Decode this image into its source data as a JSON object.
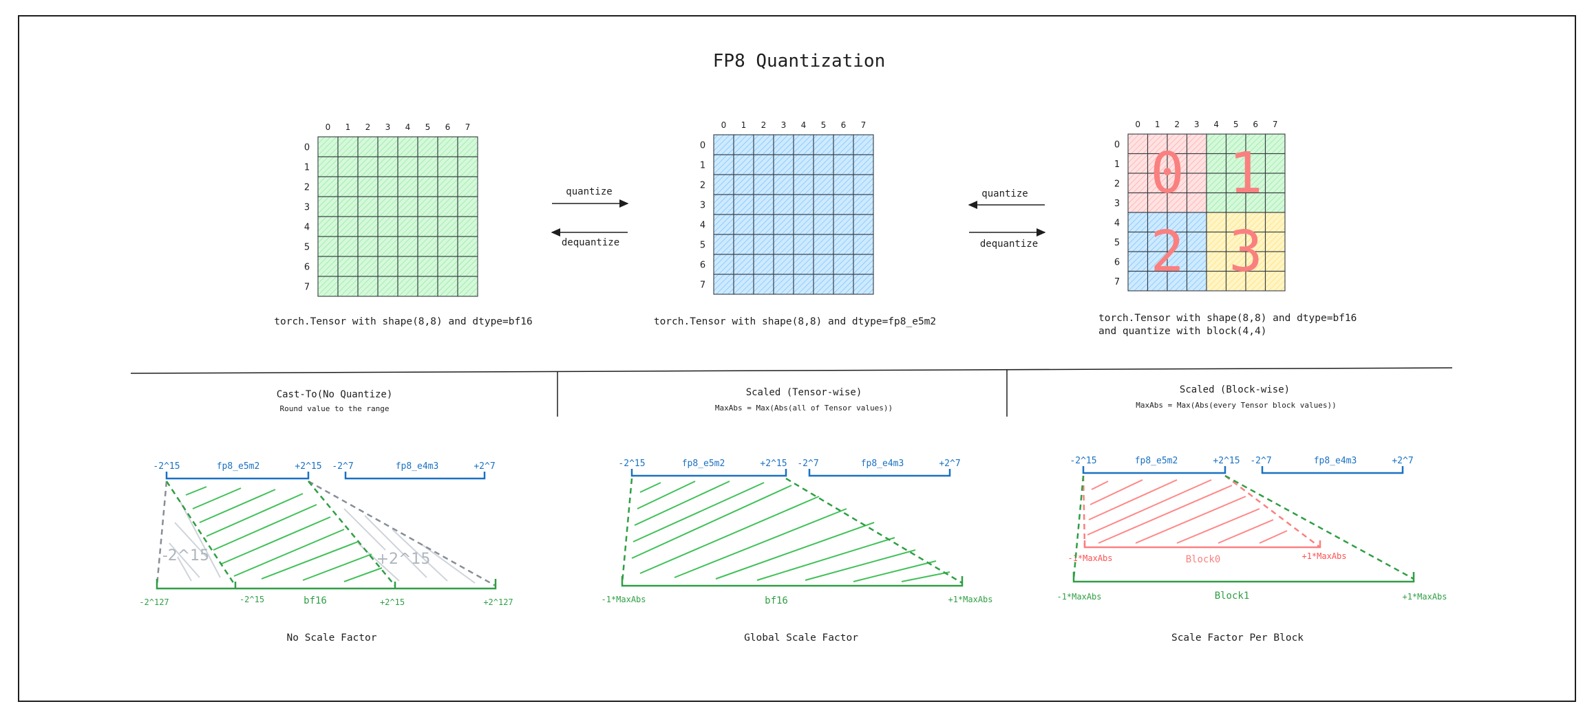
{
  "title": "FP8 Quantization",
  "colors": {
    "green_stroke": "#2f9e44",
    "green_fill": "#b2f2bb",
    "blue_stroke": "#1971c2",
    "blue_fill": "#a5d8ff",
    "red_stroke": "#fa8080",
    "red_fill": "#ffc9c9",
    "yellow_fill": "#ffec99",
    "gray_stroke": "#868e96",
    "grid_line": "#343a40"
  },
  "matrices": {
    "bf16": {
      "indices": [
        "0",
        "1",
        "2",
        "3",
        "4",
        "5",
        "6",
        "7"
      ],
      "caption": "torch.Tensor with shape(8,8) and dtype=bf16"
    },
    "fp8": {
      "indices": [
        "0",
        "1",
        "2",
        "3",
        "4",
        "5",
        "6",
        "7"
      ],
      "caption": "torch.Tensor with shape(8,8) and dtype=fp8_e5m2"
    },
    "block": {
      "indices": [
        "0",
        "1",
        "2",
        "3",
        "4",
        "5",
        "6",
        "7"
      ],
      "caption_line1": "torch.Tensor with shape(8,8) and dtype=bf16",
      "caption_line2": "and quantize with block(4,4)",
      "block_labels": [
        "0",
        "1",
        "2",
        "3"
      ]
    }
  },
  "arrows": {
    "left": {
      "quantize": "quantize",
      "dequantize": "dequantize"
    },
    "right": {
      "quantize": "quantize",
      "dequantize": "dequantize"
    }
  },
  "sections": [
    {
      "title": "Cast-To(No Quantize)",
      "subtitle": "Round value to the range",
      "footer": "No Scale Factor",
      "labels": {
        "e5m2_min": "-2^15",
        "e5m2_name": "fp8_e5m2",
        "e5m2_max": "+2^15",
        "e4m3_min": "-2^7",
        "e4m3_name": "fp8_e4m3",
        "e4m3_max": "+2^7",
        "clip_left": "-2^15",
        "clip_right": "+2^15",
        "bf16_min": "-2^127",
        "bf16_left": "-2^15",
        "bf16_name": "bf16",
        "bf16_right": "+2^15",
        "bf16_max": "+2^127"
      }
    },
    {
      "title": "Scaled (Tensor-wise)",
      "subtitle": "MaxAbs = Max(Abs(all of Tensor values))",
      "footer": "Global Scale Factor",
      "labels": {
        "e5m2_min": "-2^15",
        "e5m2_name": "fp8_e5m2",
        "e5m2_max": "+2^15",
        "e4m3_min": "-2^7",
        "e4m3_name": "fp8_e4m3",
        "e4m3_max": "+2^7",
        "bf16_min": "-1*MaxAbs",
        "bf16_name": "bf16",
        "bf16_max": "+1*MaxAbs"
      }
    },
    {
      "title": "Scaled (Block-wise)",
      "subtitle": "MaxAbs = Max(Abs(every Tensor block values))",
      "footer": "Scale Factor Per Block",
      "labels": {
        "e5m2_min": "-2^15",
        "e5m2_name": "fp8_e5m2",
        "e5m2_max": "+2^15",
        "e4m3_min": "-2^7",
        "e4m3_name": "fp8_e4m3",
        "e4m3_max": "+2^7",
        "block0_min": "-1*MaxAbs",
        "block0_name": "Block0",
        "block0_max": "+1*MaxAbs",
        "block1_min": "-1*MaxAbs",
        "block1_name": "Block1",
        "block1_max": "+1*MaxAbs"
      }
    }
  ]
}
